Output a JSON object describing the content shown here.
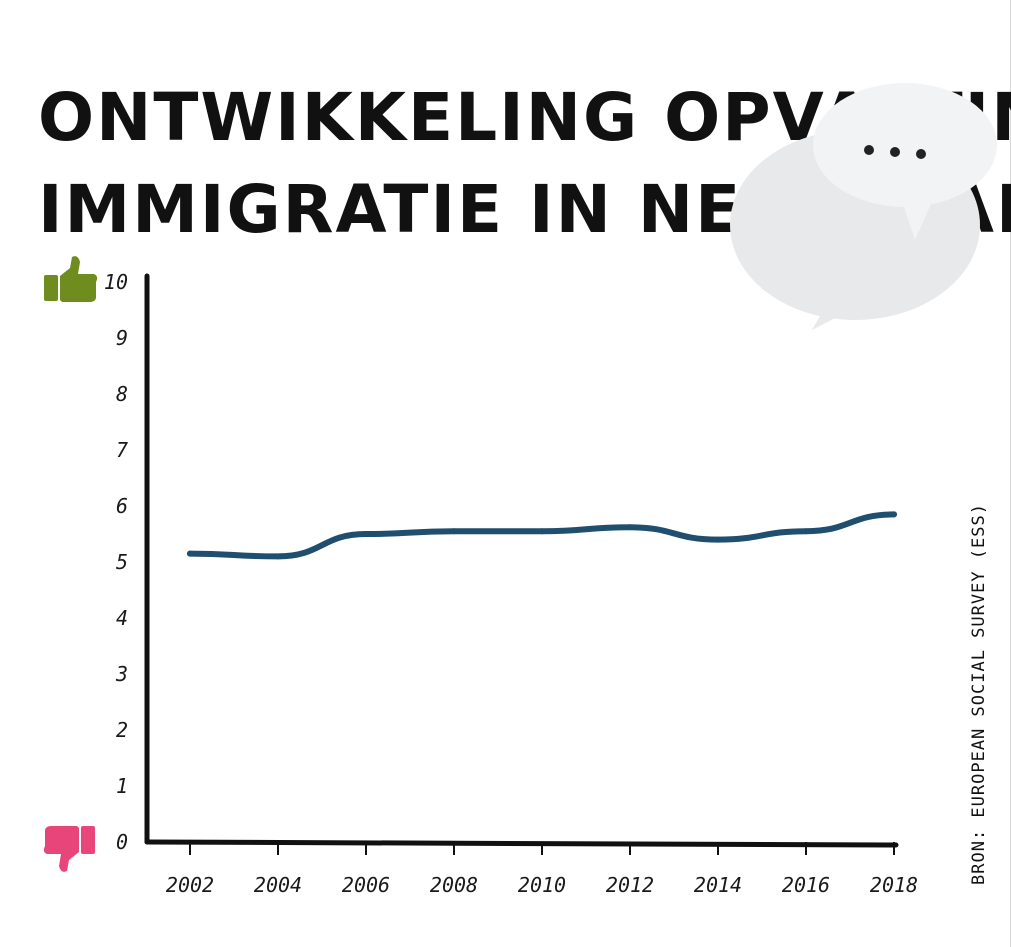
{
  "title_lines": [
    "ONTWIKKELING OPVATTING",
    "IMMIGRATIE IN NEDERLAND"
  ],
  "source": "BRON: EUROPEAN SOCIAL SURVEY (ESS)",
  "icons": {
    "top": "thumbs-up-icon",
    "bottom": "thumbs-down-icon",
    "decor": "speech-bubbles-icon"
  },
  "colors": {
    "line": "#1f4e6e",
    "thumbs_up": "#6f8d1e",
    "thumbs_down": "#e8457a",
    "axis": "#111111"
  },
  "chart_data": {
    "type": "line",
    "x": [
      "2002",
      "2004",
      "2006",
      "2008",
      "2010",
      "2012",
      "2014",
      "2016",
      "2018"
    ],
    "series": [
      {
        "values": [
          5.15,
          5.1,
          5.5,
          5.55,
          5.55,
          5.62,
          5.4,
          5.55,
          5.85
        ]
      }
    ],
    "ylim": [
      0,
      10
    ],
    "yticks": [
      "0",
      "1",
      "2",
      "3",
      "4",
      "5",
      "6",
      "7",
      "8",
      "9",
      "10"
    ],
    "grid": false,
    "title": "ONTWIKKELING OPVATTING IMMIGRATIE IN NEDERLAND",
    "xlabel": "",
    "ylabel": ""
  }
}
